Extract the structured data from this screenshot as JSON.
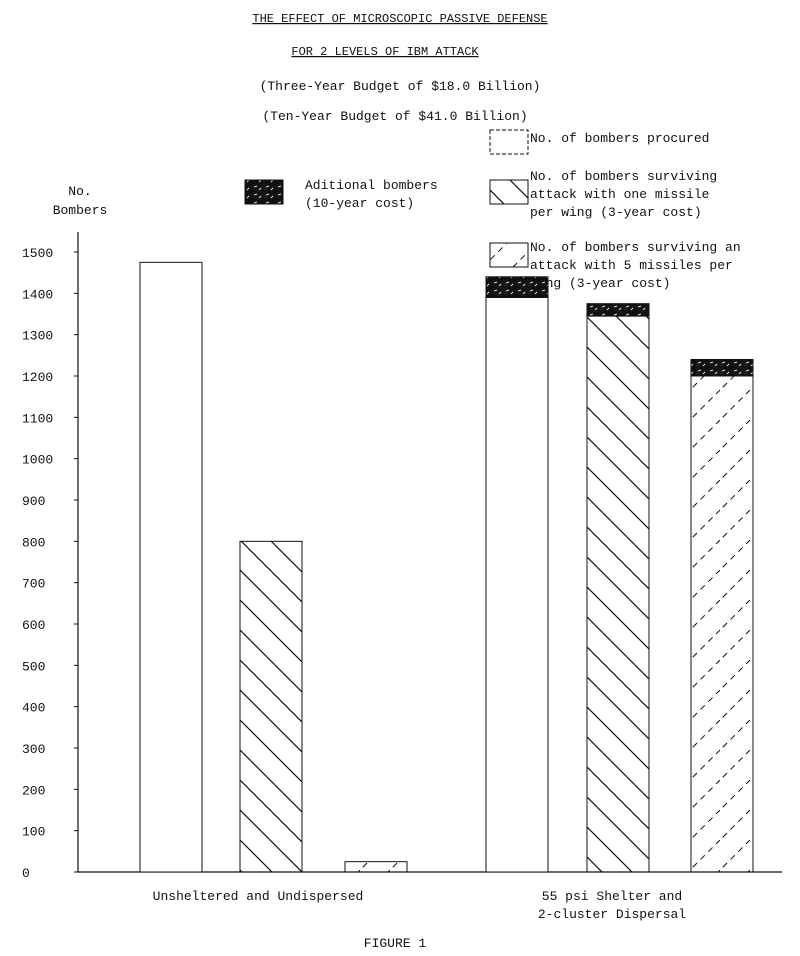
{
  "chart_data": {
    "type": "bar",
    "title": "THE EFFECT OF MICROSCOPIC PASSIVE DEFENSE",
    "subtitle": "FOR 2 LEVELS OF IBM ATTACK",
    "notes": [
      "(Three-Year Budget of $18.0 Billion)",
      "(Ten-Year Budget of $41.0 Billion)"
    ],
    "ylabel": [
      "No.",
      "Bombers"
    ],
    "ylim": [
      0,
      1500
    ],
    "yticks": [
      0,
      100,
      200,
      300,
      400,
      500,
      600,
      700,
      800,
      900,
      1000,
      1100,
      1200,
      1300,
      1400,
      1500
    ],
    "grid": false,
    "categories": [
      [
        "Unsheltered and Undispersed"
      ],
      [
        "55 psi Shelter and",
        "2-cluster Dispersal"
      ]
    ],
    "caption": "FIGURE 1",
    "legend": [
      {
        "key": "procured",
        "lines": [
          "No. of bombers procured"
        ],
        "pattern": "empty"
      },
      {
        "key": "one",
        "lines": [
          "No. of bombers surviving",
          "attack with one missile",
          "per wing (3-year cost)"
        ],
        "pattern": "back-diagonal"
      },
      {
        "key": "five",
        "lines": [
          "No. of bombers surviving an",
          "attack with 5 missiles per",
          "wing (3-year cost)"
        ],
        "pattern": "dashed-forward-diagonal"
      },
      {
        "key": "additional",
        "lines": [
          "Aditional bombers",
          "(10-year cost)"
        ],
        "pattern": "solid-black"
      }
    ],
    "series": [
      {
        "key": "procured",
        "values": [
          1475,
          1390
        ],
        "additional": [
          0,
          50
        ]
      },
      {
        "key": "one",
        "values": [
          800,
          1345
        ],
        "additional": [
          0,
          30
        ]
      },
      {
        "key": "five",
        "values": [
          25,
          1200
        ],
        "additional": [
          0,
          40
        ]
      }
    ]
  }
}
